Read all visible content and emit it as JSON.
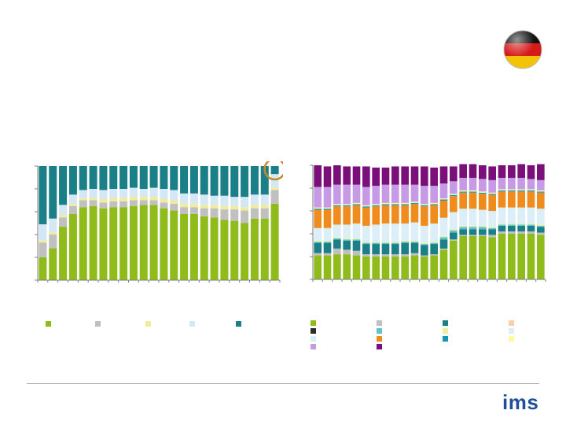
{
  "page": {
    "logo_text": "ims",
    "flag_icon": "germany-flag-icon"
  },
  "colors": {
    "left": [
      "#8fbc1a",
      "#c0c0c0",
      "#f0ec9a",
      "#d3e7f5",
      "#1a7f86"
    ],
    "right": [
      "#8fbc1a",
      "#c0c0c0",
      "#1a7f86",
      "#f7cfaa",
      "#2b2b2b",
      "#5bc3c9",
      "#e9f0a2",
      "#dceef8",
      "#d8eef5",
      "#f08c1e",
      "#1598b8",
      "#fffaa0",
      "#c79ae6",
      "#7a0f7a"
    ],
    "highlight": "#c8892a",
    "axis": "#7f7f7f"
  },
  "chart_data": [
    {
      "type": "bar",
      "stacked": true,
      "ylim": [
        0,
        100
      ],
      "num_bars": 24,
      "series": [
        {
          "name": "",
          "values": [
            20,
            28,
            47,
            58,
            64,
            65,
            63,
            64,
            64,
            65,
            66,
            66,
            63,
            61,
            58,
            58,
            56,
            55,
            53,
            52,
            50,
            54,
            54,
            67
          ]
        },
        {
          "name": "",
          "values": [
            13,
            12,
            8,
            7,
            6,
            5,
            5,
            5,
            5,
            5,
            4,
            4,
            5,
            6,
            6,
            6,
            7,
            8,
            9,
            10,
            11,
            9,
            9,
            12
          ]
        },
        {
          "name": "",
          "values": [
            2,
            2,
            2,
            2,
            2,
            2,
            3,
            3,
            3,
            3,
            3,
            3,
            3,
            3,
            3,
            3,
            3,
            3,
            3,
            3,
            3,
            3,
            3,
            2
          ]
        },
        {
          "name": "",
          "values": [
            14,
            12,
            9,
            8,
            7,
            8,
            8,
            8,
            8,
            8,
            7,
            8,
            9,
            9,
            9,
            9,
            9,
            8,
            9,
            8,
            9,
            9,
            9,
            12
          ]
        },
        {
          "name": "",
          "values": [
            51,
            46,
            34,
            25,
            21,
            20,
            21,
            20,
            20,
            19,
            20,
            19,
            20,
            21,
            24,
            24,
            25,
            26,
            26,
            27,
            27,
            25,
            25,
            7
          ]
        }
      ],
      "highlight_bar": 23
    },
    {
      "type": "bar",
      "stacked": true,
      "ylim": [
        0,
        100
      ],
      "num_bars": 24,
      "series": [
        {
          "name": "",
          "values": [
            21,
            21,
            22,
            22,
            21,
            20,
            20,
            20,
            20,
            20,
            21,
            20,
            21,
            26,
            34,
            38,
            38,
            38,
            37,
            40,
            40,
            40,
            40,
            39
          ]
        },
        {
          "name": "",
          "values": [
            2,
            2,
            5,
            4,
            4,
            2,
            2,
            2,
            2,
            2,
            2,
            1,
            1,
            1,
            1,
            1,
            1,
            1,
            2,
            2,
            2,
            2,
            2,
            2
          ]
        },
        {
          "name": "",
          "values": [
            9,
            9,
            8,
            8,
            9,
            9,
            9,
            9,
            9,
            10,
            9,
            9,
            9,
            8,
            6,
            5,
            5,
            5,
            5,
            5,
            5,
            5,
            5,
            5
          ]
        },
        {
          "name": "",
          "values": [
            0,
            0,
            0,
            0,
            0,
            0,
            0,
            0,
            0,
            0,
            0,
            0,
            0,
            0,
            0,
            0,
            0,
            0,
            0,
            0,
            0,
            0,
            0,
            0
          ]
        },
        {
          "name": "",
          "values": [
            0,
            0,
            0,
            0,
            0,
            0,
            0,
            0,
            0,
            0,
            0,
            0,
            0,
            0,
            0,
            0,
            0,
            0,
            0,
            0,
            0,
            0,
            0,
            0
          ]
        },
        {
          "name": "",
          "values": [
            1,
            1,
            1,
            1,
            1,
            1,
            1,
            1,
            1,
            1,
            1,
            1,
            1,
            2,
            2,
            2,
            2,
            2,
            1,
            1,
            1,
            1,
            1,
            1
          ]
        },
        {
          "name": "",
          "values": [
            1,
            1,
            1,
            1,
            1,
            1,
            1,
            1,
            1,
            1,
            1,
            1,
            1,
            1,
            1,
            1,
            1,
            1,
            1,
            1,
            1,
            1,
            1,
            1
          ]
        },
        {
          "name": "",
          "values": [
            9,
            9,
            9,
            10,
            11,
            12,
            13,
            14,
            14,
            13,
            14,
            13,
            14,
            14,
            13,
            13,
            13,
            12,
            12,
            12,
            12,
            12,
            12,
            12
          ]
        },
        {
          "name": "",
          "values": [
            2,
            2,
            2,
            2,
            2,
            2,
            2,
            2,
            2,
            2,
            2,
            2,
            2,
            2,
            2,
            2,
            2,
            2,
            2,
            2,
            2,
            2,
            2,
            2
          ]
        },
        {
          "name": "",
          "values": [
            16,
            16,
            16,
            16,
            16,
            16,
            16,
            16,
            16,
            16,
            16,
            17,
            16,
            15,
            14,
            14,
            14,
            14,
            14,
            14,
            14,
            14,
            14,
            14
          ]
        },
        {
          "name": "",
          "values": [
            1,
            1,
            1,
            1,
            1,
            1,
            1,
            1,
            1,
            1,
            1,
            1,
            1,
            1,
            1,
            1,
            1,
            1,
            1,
            1,
            1,
            1,
            1,
            1
          ]
        },
        {
          "name": "",
          "values": [
            1,
            1,
            1,
            1,
            1,
            1,
            1,
            1,
            1,
            1,
            1,
            1,
            1,
            1,
            1,
            1,
            1,
            1,
            1,
            1,
            1,
            1,
            1,
            1
          ]
        },
        {
          "name": "",
          "values": [
            18,
            18,
            17,
            17,
            16,
            16,
            16,
            16,
            16,
            16,
            15,
            16,
            15,
            13,
            11,
            11,
            11,
            11,
            11,
            10,
            10,
            10,
            9,
            9
          ]
        },
        {
          "name": "",
          "values": [
            19,
            18,
            17,
            16,
            16,
            18,
            16,
            15,
            16,
            16,
            16,
            17,
            16,
            15,
            13,
            12,
            12,
            12,
            12,
            11,
            11,
            12,
            12,
            14
          ]
        }
      ]
    }
  ]
}
